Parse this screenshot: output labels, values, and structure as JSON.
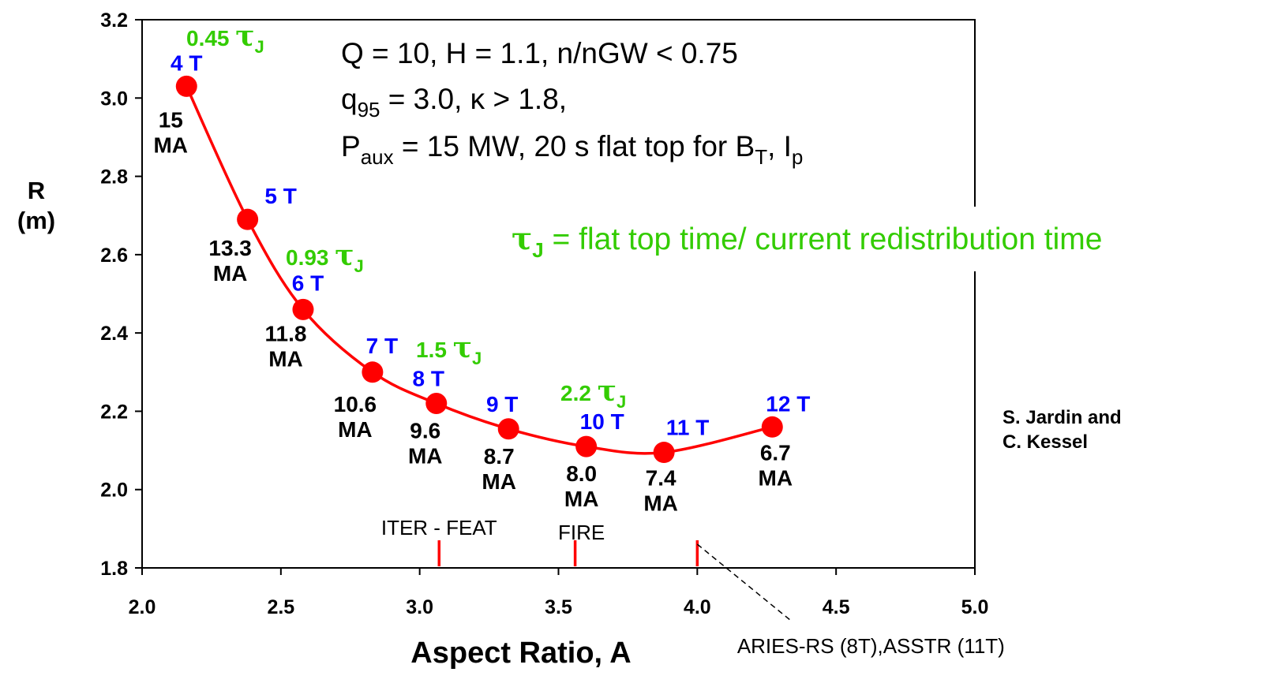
{
  "chart_data": {
    "type": "line",
    "xlabel": "Aspect Ratio, A",
    "ylabel_line1": "R",
    "ylabel_line2": "(m)",
    "xlim": [
      2.0,
      5.0
    ],
    "ylim": [
      1.8,
      3.2
    ],
    "x_ticks": [
      "2.0",
      "2.5",
      "3.0",
      "3.5",
      "4.0",
      "4.5",
      "5.0"
    ],
    "y_ticks": [
      "1.8",
      "2.0",
      "2.2",
      "2.4",
      "2.6",
      "2.8",
      "3.0",
      "3.2"
    ],
    "grid": false,
    "series": [
      {
        "color": "#ff0000",
        "points": [
          {
            "x": 2.16,
            "y": 3.03,
            "field": "4 T",
            "current": [
              "15",
              "MA"
            ]
          },
          {
            "x": 2.38,
            "y": 2.69,
            "field": "5 T",
            "current": [
              "13.3",
              "MA"
            ]
          },
          {
            "x": 2.58,
            "y": 2.46,
            "field": "6 T",
            "current": [
              "11.8",
              "MA"
            ]
          },
          {
            "x": 2.83,
            "y": 2.3,
            "field": "7 T",
            "current": [
              "10.6",
              "MA"
            ]
          },
          {
            "x": 3.06,
            "y": 2.22,
            "field": "8 T",
            "current": [
              "9.6",
              "MA"
            ]
          },
          {
            "x": 3.32,
            "y": 2.155,
            "field": "9 T",
            "current": [
              "8.7",
              "MA"
            ]
          },
          {
            "x": 3.6,
            "y": 2.11,
            "field": "10 T",
            "current": [
              "8.0",
              "MA"
            ]
          },
          {
            "x": 3.88,
            "y": 2.095,
            "field": "11 T",
            "current": [
              "7.4",
              "MA"
            ]
          },
          {
            "x": 4.27,
            "y": 2.16,
            "field": "12 T",
            "current": [
              "6.7",
              "MA"
            ]
          }
        ]
      }
    ],
    "tau_labels": [
      {
        "value": "0.45",
        "x": 2.16
      },
      {
        "value": "0.93",
        "x": 2.58
      },
      {
        "value": "1.5",
        "x": 3.06
      },
      {
        "value": "2.2",
        "x": 3.6
      }
    ],
    "tau_symbol": "τ",
    "tau_subscript": "J",
    "reference_markers": [
      {
        "x": 3.07,
        "label": "ITER - FEAT"
      },
      {
        "x": 3.56,
        "label": "FIRE"
      },
      {
        "x": 4.0,
        "label": "ARIES-RS (8T),ASSTR (11T)"
      }
    ],
    "annotation_lines": {
      "line1": "Q = 10,  H = 1.1, n/nGW < 0.75",
      "line2_q": "q",
      "line2_q_sub": "95",
      "line2_rest": " = 3.0, ",
      "line2_kappa": "κ",
      "line2_tail": " > 1.8,",
      "line3_p": "P",
      "line3_p_sub": "aux",
      "line3_mid": " = 15 MW, 20 s  flat top for B",
      "line3_b_sub": "T",
      "line3_sep": ", I",
      "line3_i_sub": "p"
    },
    "tau_definition": {
      "symbol": "τ",
      "subscript": "J",
      "text": " =  flat top time/ current redistribution time"
    },
    "credit_line1": "S. Jardin and",
    "credit_line2": "C. Kessel",
    "colors": {
      "curve": "#ff0000",
      "field_label": "#0000ff",
      "tau_label": "#33cc00",
      "current_label": "#000000",
      "marker": "#ff0000"
    }
  }
}
